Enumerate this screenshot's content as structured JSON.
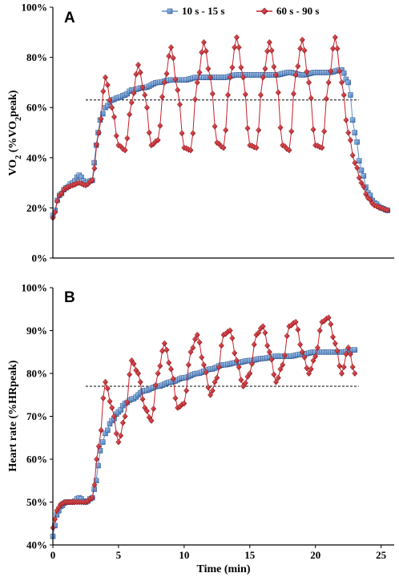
{
  "chart_data": [
    {
      "type": "line",
      "panel_label": "A",
      "ylabel_parts": [
        "VO",
        "2",
        " (%VO",
        "2",
        "peak)"
      ],
      "xlabel": "",
      "ylim": [
        0,
        100
      ],
      "xlim": [
        0,
        26
      ],
      "yticks": [
        "0%",
        "20%",
        "40%",
        "60%",
        "80%",
        "100%"
      ],
      "xticks": [],
      "legend_position": "top-right",
      "reference_line": 63,
      "series": [
        {
          "name": "10 s - 15 s",
          "color": "#5b8fd0",
          "marker": "square",
          "x": [
            0,
            0.5,
            1,
            1.5,
            2,
            2.5,
            3,
            3.3,
            3.6,
            4,
            4.5,
            5,
            5.5,
            6,
            7,
            8,
            9,
            10,
            11,
            12,
            13,
            14,
            15,
            16,
            17,
            18,
            19,
            20,
            21,
            22,
            22.5,
            23,
            23.5,
            24,
            24.5,
            25,
            25.5
          ],
          "y": [
            17,
            25,
            28,
            30,
            33,
            30,
            31,
            45,
            55,
            60,
            63,
            64,
            65,
            67,
            68,
            70,
            71,
            71,
            72,
            72,
            72,
            73,
            73,
            73,
            73,
            74,
            73,
            74,
            74,
            75,
            70,
            50,
            35,
            26,
            22,
            20,
            19
          ]
        },
        {
          "name": "60 s - 90 s",
          "color": "#c8202b",
          "marker": "diamond",
          "x": [
            0,
            0.5,
            1,
            1.5,
            2,
            2.5,
            3,
            3.5,
            4,
            4.5,
            5,
            5.5,
            6,
            6.5,
            7,
            7.5,
            8,
            8.5,
            9,
            9.5,
            10,
            10.5,
            11,
            11.5,
            12,
            12.5,
            13,
            13.5,
            14,
            14.5,
            15,
            15.5,
            16,
            16.5,
            17,
            17.5,
            18,
            18.5,
            19,
            19.5,
            20,
            20.5,
            21,
            21.5,
            22,
            22.5,
            23,
            23.5,
            24,
            24.5,
            25,
            25.5
          ],
          "y": [
            16,
            25,
            28,
            29,
            30,
            29,
            31,
            50,
            72,
            60,
            45,
            43,
            62,
            77,
            65,
            45,
            47,
            70,
            84,
            67,
            44,
            43,
            70,
            86,
            72,
            46,
            44,
            72,
            88,
            72,
            45,
            44,
            72,
            86,
            73,
            45,
            43,
            73,
            87,
            70,
            45,
            44,
            70,
            88,
            70,
            50,
            38,
            30,
            24,
            21,
            20,
            19
          ]
        }
      ]
    },
    {
      "type": "line",
      "panel_label": "B",
      "ylabel_parts": [
        "Heart rate (%HRpeak)"
      ],
      "xlabel": "Time (min)",
      "ylim": [
        40,
        100
      ],
      "xlim": [
        0,
        26
      ],
      "yticks": [
        "40%",
        "50%",
        "60%",
        "70%",
        "80%",
        "90%",
        "100%"
      ],
      "xticks": [
        "0",
        "5",
        "10",
        "15",
        "20",
        "25"
      ],
      "reference_line": 77,
      "series": [
        {
          "name": "10 s - 15 s",
          "color": "#5b8fd0",
          "marker": "square",
          "x": [
            0,
            0.3,
            0.6,
            1,
            1.5,
            2,
            2.5,
            3,
            3.3,
            3.6,
            4,
            4.5,
            5,
            5.5,
            6,
            7,
            8,
            9,
            10,
            11,
            12,
            13,
            14,
            15,
            16,
            17,
            18,
            19,
            20,
            21,
            22,
            23
          ],
          "y": [
            42,
            47,
            49,
            50,
            50,
            51,
            50,
            51,
            55,
            62,
            66,
            69,
            71,
            73,
            74,
            76,
            77,
            78,
            79,
            80,
            81,
            82,
            82.5,
            83,
            83.5,
            84,
            84,
            84.5,
            85,
            85,
            85,
            85.5
          ]
        },
        {
          "name": "60 s - 90 s",
          "color": "#c8202b",
          "marker": "diamond",
          "x": [
            0,
            0.3,
            0.6,
            1,
            1.5,
            2,
            2.5,
            3,
            3.5,
            4,
            4.5,
            5,
            5.5,
            6,
            6.5,
            7,
            7.5,
            8,
            8.5,
            9,
            9.5,
            10,
            10.5,
            11,
            11.5,
            12,
            12.5,
            13,
            13.5,
            14,
            14.5,
            15,
            15.5,
            16,
            16.5,
            17,
            17.5,
            18,
            18.5,
            19,
            19.5,
            20,
            20.5,
            21,
            21.5,
            22,
            22.5,
            23
          ],
          "y": [
            44,
            48,
            49.5,
            50,
            50,
            50,
            50,
            51,
            63,
            78,
            72,
            64,
            70,
            83,
            80,
            72,
            69,
            80,
            87,
            81,
            72,
            73,
            85,
            89,
            82,
            75,
            79,
            89,
            90,
            83,
            77,
            80,
            89,
            91,
            85,
            78,
            82,
            91,
            92,
            85,
            80,
            84,
            92,
            93,
            87,
            80,
            86,
            80
          ]
        }
      ]
    }
  ]
}
